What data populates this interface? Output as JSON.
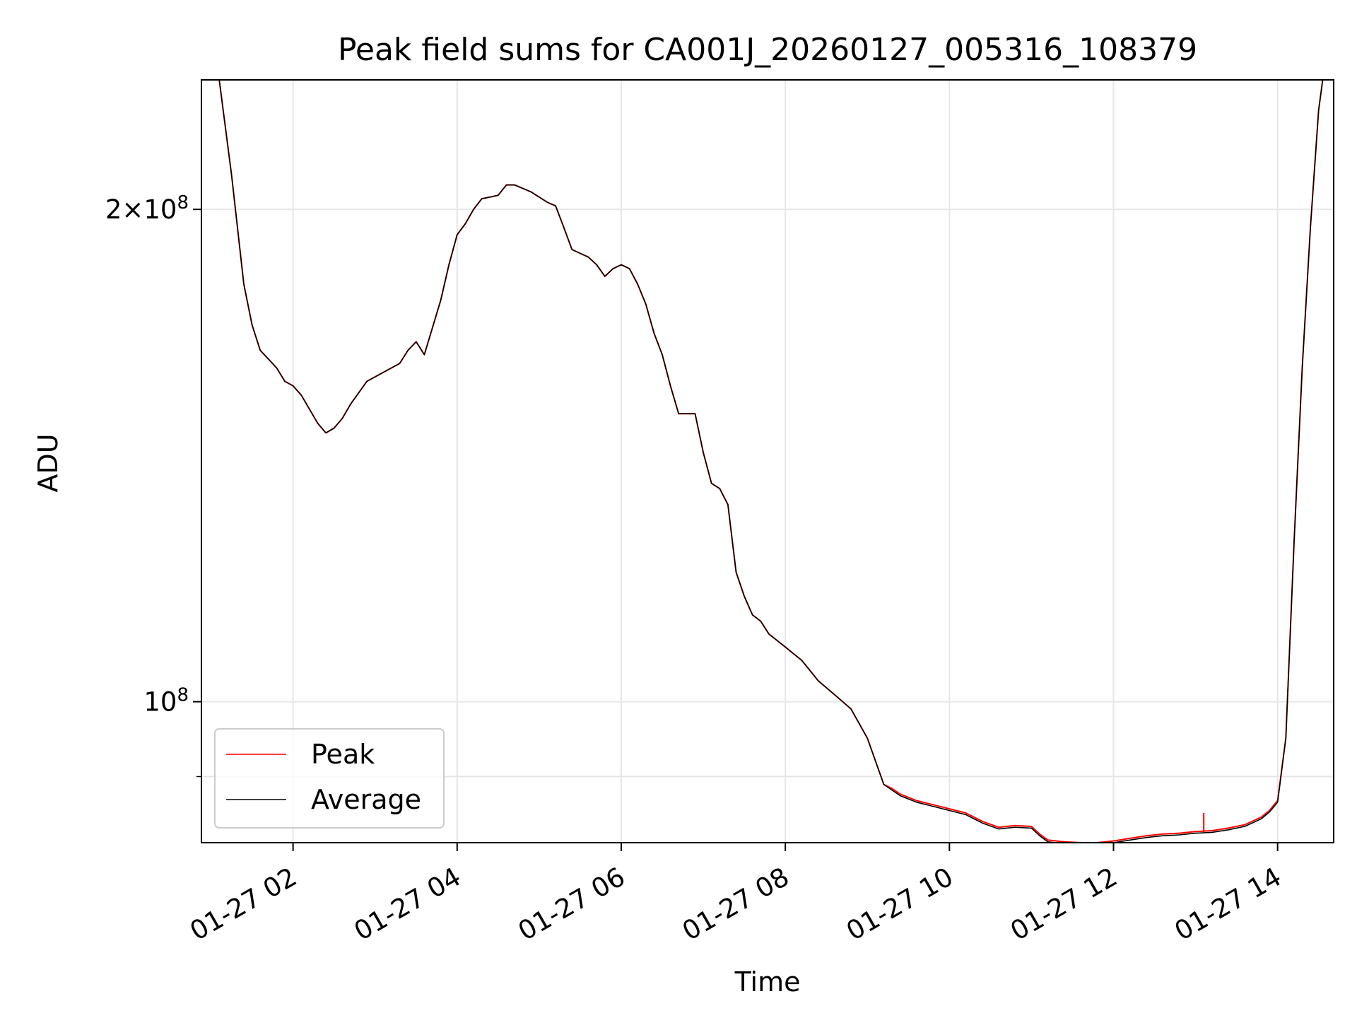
{
  "chart_data": {
    "type": "line",
    "title": "Peak field sums for CA001J_20260127_005316_108379",
    "xlabel": "Time",
    "ylabel": "ADU",
    "xscale": "time",
    "yscale": "log",
    "xlim": [
      "2026-01-27 00:53",
      "2026-01-27 14:41"
    ],
    "ylim": [
      82000000,
      240000000
    ],
    "x_ticks": [
      {
        "value": "2026-01-27 02:00",
        "label": "01-27 02"
      },
      {
        "value": "2026-01-27 04:00",
        "label": "01-27 04"
      },
      {
        "value": "2026-01-27 06:00",
        "label": "01-27 06"
      },
      {
        "value": "2026-01-27 08:00",
        "label": "01-27 08"
      },
      {
        "value": "2026-01-27 10:00",
        "label": "01-27 10"
      },
      {
        "value": "2026-01-27 12:00",
        "label": "01-27 12"
      },
      {
        "value": "2026-01-27 14:00",
        "label": "01-27 14"
      }
    ],
    "y_ticks": [
      {
        "value": 200000000,
        "mantissa": "2",
        "base": "10",
        "exp": "8"
      },
      {
        "value": 100000000,
        "mantissa": "",
        "base": "10",
        "exp": "8"
      }
    ],
    "y_minor_ticks": [
      90000000,
      80000000
    ],
    "grid": true,
    "legend_position": "lower-left",
    "x": [
      "2026-01-27 01:06",
      "2026-01-27 01:15",
      "2026-01-27 01:24",
      "2026-01-27 01:30",
      "2026-01-27 01:36",
      "2026-01-27 01:42",
      "2026-01-27 01:48",
      "2026-01-27 01:54",
      "2026-01-27 02:00",
      "2026-01-27 02:06",
      "2026-01-27 02:12",
      "2026-01-27 02:18",
      "2026-01-27 02:24",
      "2026-01-27 02:30",
      "2026-01-27 02:36",
      "2026-01-27 02:42",
      "2026-01-27 02:54",
      "2026-01-27 03:06",
      "2026-01-27 03:18",
      "2026-01-27 03:24",
      "2026-01-27 03:30",
      "2026-01-27 03:36",
      "2026-01-27 03:48",
      "2026-01-27 03:54",
      "2026-01-27 04:00",
      "2026-01-27 04:06",
      "2026-01-27 04:12",
      "2026-01-27 04:18",
      "2026-01-27 04:30",
      "2026-01-27 04:36",
      "2026-01-27 04:42",
      "2026-01-27 04:48",
      "2026-01-27 04:54",
      "2026-01-27 05:06",
      "2026-01-27 05:12",
      "2026-01-27 05:18",
      "2026-01-27 05:24",
      "2026-01-27 05:30",
      "2026-01-27 05:36",
      "2026-01-27 05:42",
      "2026-01-27 05:48",
      "2026-01-27 05:54",
      "2026-01-27 06:00",
      "2026-01-27 06:06",
      "2026-01-27 06:12",
      "2026-01-27 06:18",
      "2026-01-27 06:24",
      "2026-01-27 06:30",
      "2026-01-27 06:36",
      "2026-01-27 06:42",
      "2026-01-27 06:48",
      "2026-01-27 06:54",
      "2026-01-27 07:00",
      "2026-01-27 07:06",
      "2026-01-27 07:12",
      "2026-01-27 07:18",
      "2026-01-27 07:24",
      "2026-01-27 07:30",
      "2026-01-27 07:36",
      "2026-01-27 07:42",
      "2026-01-27 07:48",
      "2026-01-27 07:54",
      "2026-01-27 08:00",
      "2026-01-27 08:12",
      "2026-01-27 08:24",
      "2026-01-27 08:36",
      "2026-01-27 08:48",
      "2026-01-27 09:00",
      "2026-01-27 09:12",
      "2026-01-27 09:18",
      "2026-01-27 09:24",
      "2026-01-27 09:36",
      "2026-01-27 09:48",
      "2026-01-27 10:00",
      "2026-01-27 10:12",
      "2026-01-27 10:24",
      "2026-01-27 10:36",
      "2026-01-27 10:48",
      "2026-01-27 11:00",
      "2026-01-27 11:06",
      "2026-01-27 11:12",
      "2026-01-27 11:24",
      "2026-01-27 11:36",
      "2026-01-27 11:48",
      "2026-01-27 12:00",
      "2026-01-27 12:12",
      "2026-01-27 12:24",
      "2026-01-27 12:36",
      "2026-01-27 12:48",
      "2026-01-27 13:00",
      "2026-01-27 13:12",
      "2026-01-27 13:24",
      "2026-01-27 13:36",
      "2026-01-27 13:48",
      "2026-01-27 13:54",
      "2026-01-27 14:00",
      "2026-01-27 14:06",
      "2026-01-27 14:12",
      "2026-01-27 14:18",
      "2026-01-27 14:24",
      "2026-01-27 14:30",
      "2026-01-27 14:33"
    ],
    "series": [
      {
        "name": "Peak",
        "color": "#ff0000",
        "values": [
          240000000,
          210000000,
          180000000,
          170000000,
          164000000,
          162000000,
          160000000,
          157000000,
          156000000,
          154000000,
          151000000,
          148000000,
          146000000,
          147000000,
          149000000,
          152000000,
          157000000,
          159000000,
          161000000,
          164000000,
          166000000,
          163000000,
          176000000,
          185000000,
          193000000,
          196000000,
          200000000,
          203000000,
          204000000,
          207000000,
          207000000,
          206000000,
          205000000,
          202000000,
          201000000,
          195000000,
          189000000,
          188000000,
          187000000,
          185000000,
          182000000,
          184000000,
          185000000,
          184000000,
          180000000,
          175000000,
          168000000,
          163000000,
          156000000,
          150000000,
          150000000,
          150000000,
          142000000,
          136000000,
          135000000,
          132000000,
          120000000,
          116000000,
          113000000,
          112000000,
          110000000,
          109000000,
          108000000,
          106000000,
          103000000,
          101000000,
          99000000,
          95000000,
          89000000,
          88500000,
          87800000,
          87000000,
          86500000,
          86000000,
          85500000,
          84500000,
          83800000,
          84000000,
          83900000,
          83000000,
          82300000,
          82100000,
          82000000,
          82000000,
          82200000,
          82500000,
          82800000,
          83000000,
          83100000,
          83300000,
          83400000,
          83700000,
          84100000,
          85000000,
          85800000,
          87000000,
          95000000,
          125000000,
          160000000,
          195000000,
          230000000,
          240000000
        ]
      },
      {
        "name": "Average",
        "color": "#000000",
        "values": [
          240000000,
          210000000,
          180000000,
          170000000,
          164000000,
          162000000,
          160000000,
          157000000,
          156000000,
          154000000,
          151000000,
          148000000,
          146000000,
          147000000,
          149000000,
          152000000,
          157000000,
          159000000,
          161000000,
          164000000,
          166000000,
          163000000,
          176000000,
          185000000,
          193000000,
          196000000,
          200000000,
          203000000,
          204000000,
          207000000,
          207000000,
          206000000,
          205000000,
          202000000,
          201000000,
          195000000,
          189000000,
          188000000,
          187000000,
          185000000,
          182000000,
          184000000,
          185000000,
          184000000,
          180000000,
          175000000,
          168000000,
          163000000,
          156000000,
          150000000,
          150000000,
          150000000,
          142000000,
          136000000,
          135000000,
          132000000,
          120000000,
          116000000,
          113000000,
          112000000,
          110000000,
          109000000,
          108000000,
          106000000,
          103000000,
          101000000,
          99000000,
          95000000,
          89000000,
          88300000,
          87600000,
          86800000,
          86300000,
          85800000,
          85300000,
          84300000,
          83600000,
          83800000,
          83700000,
          82800000,
          82100000,
          81900000,
          81800000,
          81800000,
          82000000,
          82300000,
          82600000,
          82800000,
          82900000,
          83100000,
          83200000,
          83500000,
          83900000,
          84800000,
          85600000,
          86800000,
          95000000,
          125000000,
          160000000,
          195000000,
          230000000,
          240000000
        ]
      }
    ],
    "annotations": [
      {
        "series": "Peak",
        "x": "2026-01-27 13:06",
        "value": 85500000,
        "text": ""
      }
    ]
  }
}
